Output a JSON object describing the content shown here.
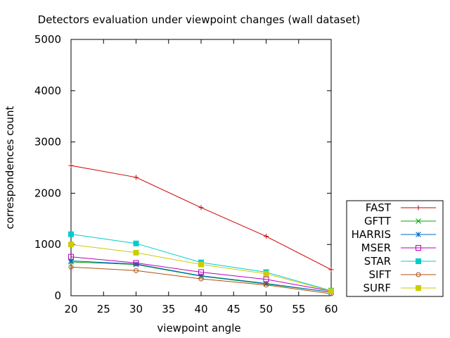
{
  "chart_data": {
    "type": "line",
    "title": "Detectors evaluation under viewpoint changes (wall dataset)",
    "xlabel": "viewpoint angle",
    "ylabel": "correspondences count",
    "xlim": [
      20,
      60
    ],
    "ylim": [
      0,
      5000
    ],
    "x_ticks": [
      20,
      25,
      30,
      35,
      40,
      45,
      50,
      55,
      60
    ],
    "y_ticks": [
      0,
      1000,
      2000,
      3000,
      4000,
      5000
    ],
    "x": [
      20,
      30,
      40,
      50,
      60
    ],
    "grid": false,
    "legend_position": "bottom-right, outside plot area",
    "series": [
      {
        "name": "FAST",
        "color": "#cc0000",
        "marker": "plus",
        "values": [
          2540,
          2310,
          1720,
          1160,
          510
        ]
      },
      {
        "name": "GFTT",
        "color": "#00aa00",
        "marker": "cross",
        "values": [
          660,
          610,
          380,
          230,
          70
        ]
      },
      {
        "name": "HARRIS",
        "color": "#0066cc",
        "marker": "star",
        "values": [
          680,
          620,
          390,
          240,
          70
        ]
      },
      {
        "name": "MSER",
        "color": "#bb00bb",
        "marker": "open-square",
        "values": [
          760,
          640,
          460,
          320,
          90
        ]
      },
      {
        "name": "STAR",
        "color": "#00cccc",
        "marker": "filled-square",
        "values": [
          1200,
          1020,
          650,
          460,
          100
        ]
      },
      {
        "name": "SIFT",
        "color": "#b05010",
        "marker": "open-circle",
        "values": [
          560,
          490,
          330,
          210,
          40
        ]
      },
      {
        "name": "SURF",
        "color": "#cccc00",
        "marker": "filled-square",
        "values": [
          1000,
          840,
          610,
          430,
          90
        ]
      }
    ]
  }
}
